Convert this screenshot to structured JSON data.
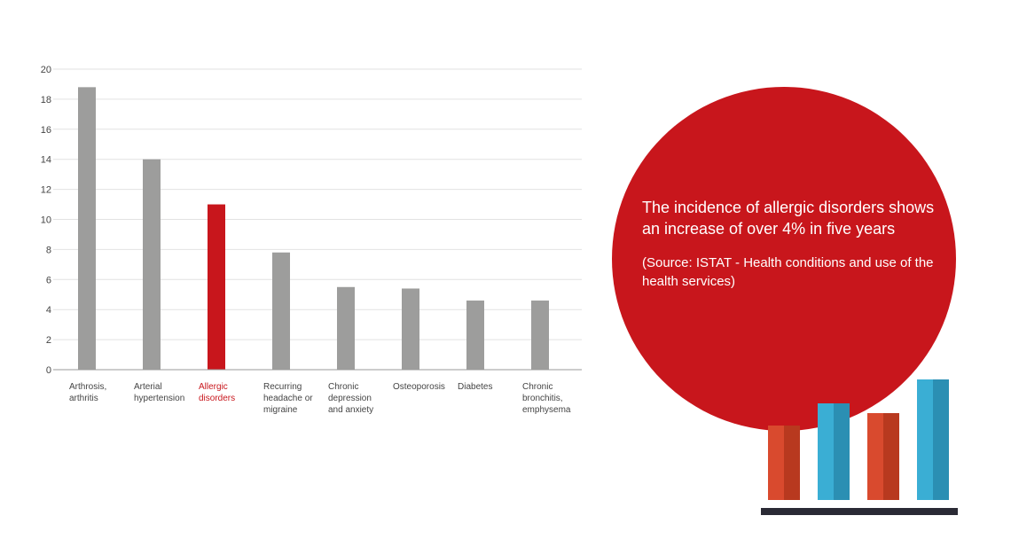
{
  "chart_data": {
    "type": "bar",
    "categories": [
      "Arthrosis,\narthritis",
      "Arterial\nhypertension",
      "Allergic\ndisorders",
      "Recurring\nheadache or\nmigraine",
      "Chronic\ndepression\nand anxiety",
      "Osteoporosis",
      "Diabetes",
      "Chronic\nbronchitis,\nemphysema"
    ],
    "values": [
      18.8,
      14.0,
      11.0,
      7.8,
      5.5,
      5.4,
      4.6,
      4.6
    ],
    "highlight_index": 2,
    "colors": {
      "default": "#9d9d9c",
      "highlight": "#c8161c",
      "label_highlight": "#c8161c"
    },
    "ylim": [
      0,
      20
    ],
    "yticks": [
      0,
      2,
      4,
      6,
      8,
      10,
      12,
      14,
      16,
      18,
      20
    ],
    "grid": true
  },
  "callout": {
    "headline": "The incidence of allergic disorders shows an increase of over 4% in five years",
    "source": "(Source: ISTAT - Health conditions and use of the health services)",
    "background_color": "#c8161c",
    "text_color": "#ffffff"
  },
  "decoration": {
    "icon": "bar-chart-illustration-icon",
    "colors": {
      "orange": "#d94a2e",
      "orange_shade": "#b8391f",
      "blue": "#3aaed4",
      "blue_shade": "#2b8fb3",
      "base": "#2a2a35"
    }
  }
}
